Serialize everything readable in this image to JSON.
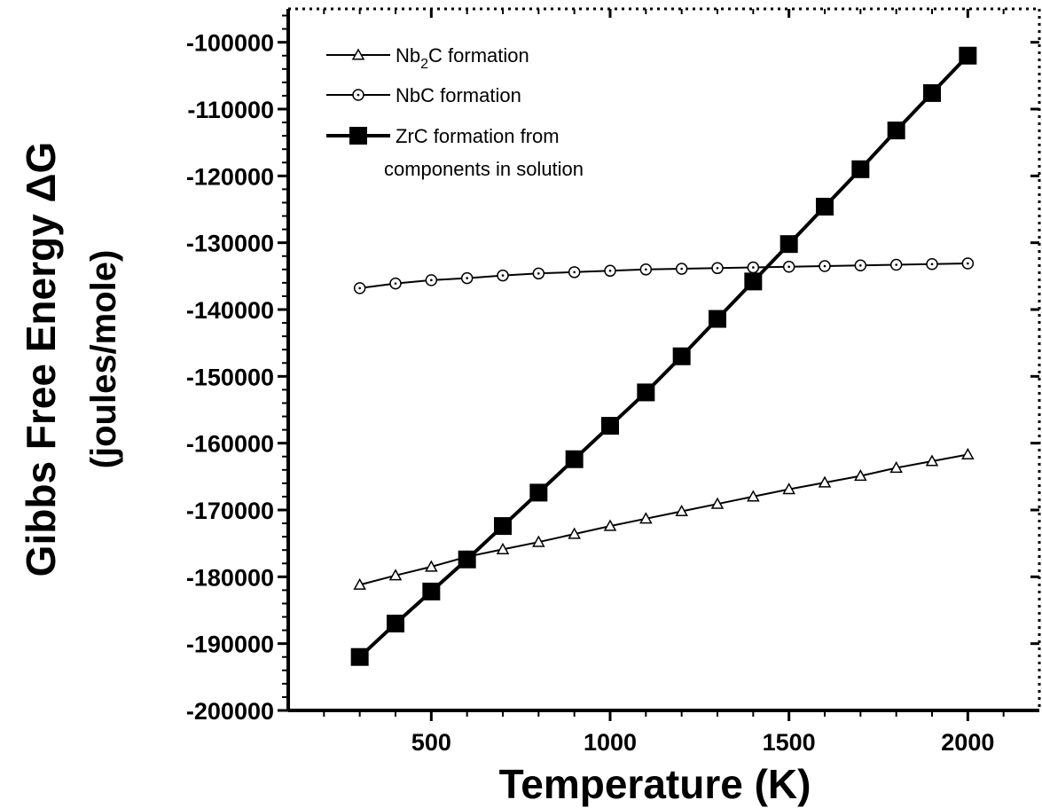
{
  "chart_data": {
    "type": "line",
    "xlabel": "Temperature (K)",
    "ylabel": "Gibbs Free Energy ΔG",
    "ylabel_units": "(joules/mole)",
    "xlim": [
      100,
      2200
    ],
    "ylim": [
      -200000,
      -95000
    ],
    "x_ticks": [
      500,
      1000,
      1500,
      2000
    ],
    "y_ticks": [
      -200000,
      -190000,
      -180000,
      -170000,
      -160000,
      -150000,
      -140000,
      -130000,
      -120000,
      -110000,
      -100000
    ],
    "x_tick_labels": [
      "500",
      "1000",
      "1500",
      "2000"
    ],
    "y_tick_labels": [
      "-200000",
      "-190000",
      "-180000",
      "-170000",
      "-160000",
      "-150000",
      "-140000",
      "-130000",
      "-120000",
      "-110000",
      "-100000"
    ],
    "grid": false,
    "legend_position": "top-left",
    "x": [
      300,
      400,
      500,
      600,
      700,
      800,
      900,
      1000,
      1100,
      1200,
      1300,
      1400,
      1500,
      1600,
      1700,
      1800,
      1900,
      2000
    ],
    "series": [
      {
        "name": "Nb2C formation",
        "label_main": "Nb",
        "label_sub": "2",
        "label_rest": "C formation",
        "marker": "open-triangle",
        "color": "#000000",
        "values": [
          -181200,
          -179800,
          -178500,
          -177000,
          -175900,
          -174800,
          -173600,
          -172400,
          -171300,
          -170200,
          -169100,
          -168000,
          -166900,
          -165900,
          -164900,
          -163700,
          -162700,
          -161700
        ]
      },
      {
        "name": "NbC formation",
        "label_main": "NbC formation",
        "marker": "open-circle-dot",
        "color": "#000000",
        "values": [
          -136800,
          -136100,
          -135600,
          -135300,
          -134900,
          -134600,
          -134400,
          -134200,
          -134000,
          -133900,
          -133800,
          -133700,
          -133600,
          -133500,
          -133400,
          -133300,
          -133200,
          -133100
        ]
      },
      {
        "name": "ZrC formation from components in solution",
        "label_main": "ZrC formation from",
        "label_line2": "components in solution",
        "marker": "filled-square",
        "color": "#000000",
        "values": [
          -192000,
          -187000,
          -182200,
          -177400,
          -172400,
          -167400,
          -162400,
          -157400,
          -152400,
          -147000,
          -141400,
          -135800,
          -130200,
          -124600,
          -119000,
          -113200,
          -107600,
          -102000
        ]
      }
    ]
  }
}
